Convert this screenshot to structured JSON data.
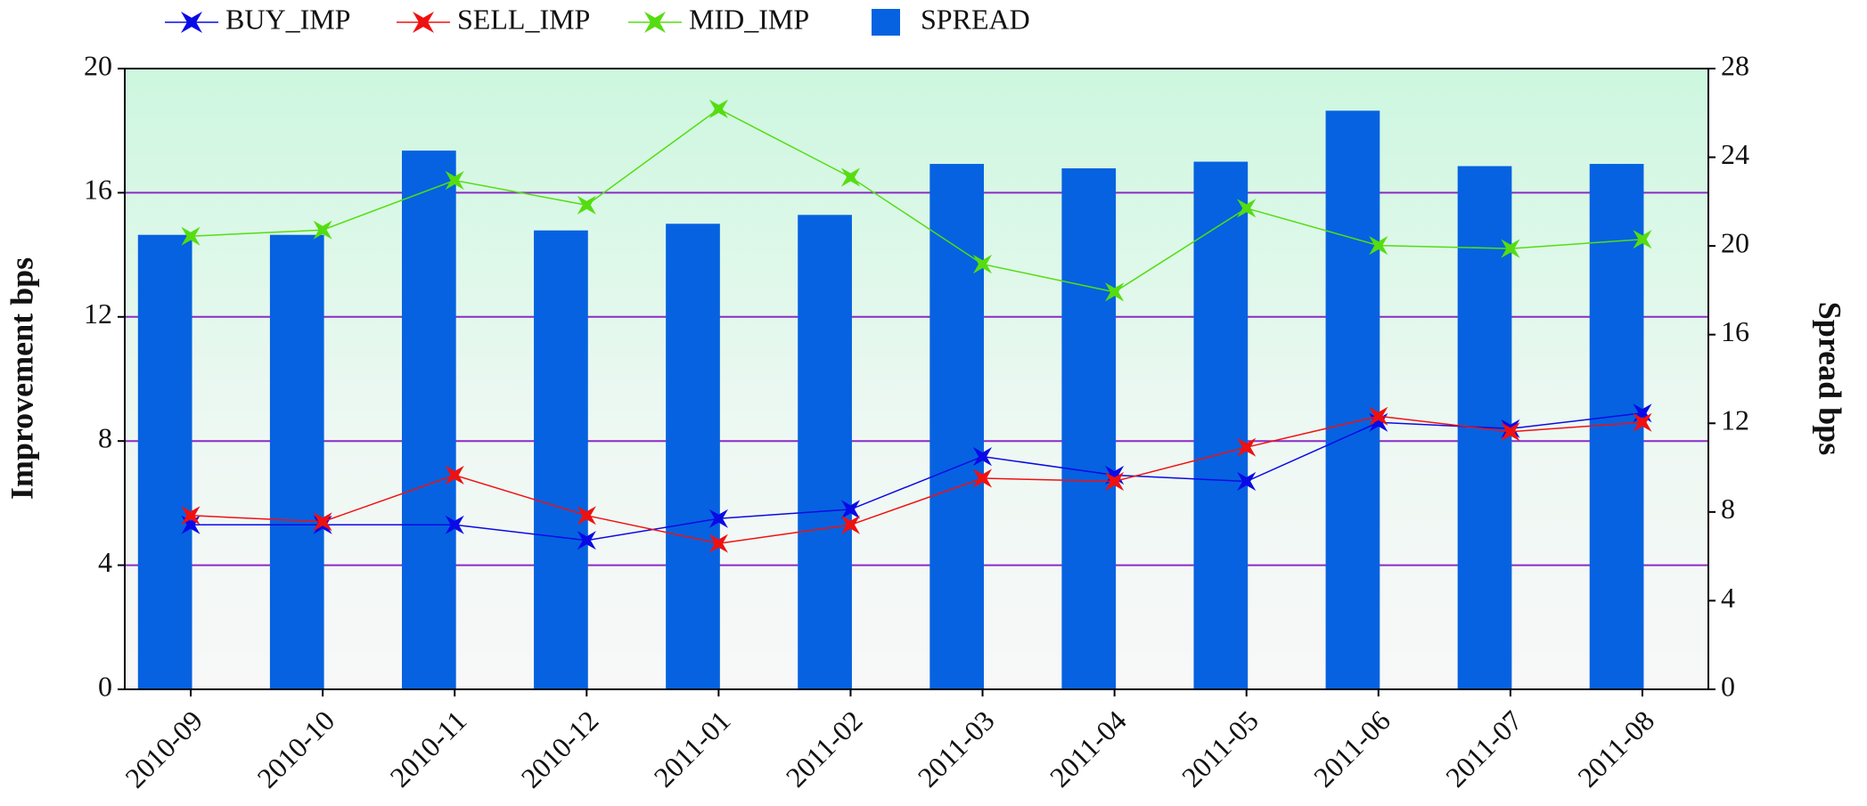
{
  "chart_data": {
    "type": "bar",
    "categories": [
      "2010-09",
      "2010-10",
      "2010-11",
      "2010-12",
      "2011-01",
      "2011-02",
      "2011-03",
      "2011-04",
      "2011-05",
      "2011-06",
      "2011-07",
      "2011-08"
    ],
    "series": [
      {
        "name": "BUY_IMP",
        "type": "line",
        "color": "#0a0ae6",
        "values": [
          5.3,
          5.3,
          5.3,
          4.8,
          5.5,
          5.8,
          7.5,
          6.9,
          6.7,
          8.6,
          8.4,
          8.9
        ]
      },
      {
        "name": "SELL_IMP",
        "type": "line",
        "color": "#f01010",
        "values": [
          5.6,
          5.4,
          6.9,
          5.6,
          4.7,
          5.3,
          6.8,
          6.7,
          7.8,
          8.8,
          8.3,
          8.6
        ]
      },
      {
        "name": "MID_IMP",
        "type": "line",
        "color": "#55dd11",
        "values": [
          14.6,
          14.8,
          16.4,
          15.6,
          18.7,
          16.5,
          13.7,
          12.8,
          15.5,
          14.3,
          14.2,
          14.5
        ]
      },
      {
        "name": "SPREAD",
        "type": "bar",
        "axis": "y2",
        "color": "#0662e0",
        "values": [
          20.5,
          20.5,
          24.3,
          20.7,
          21.0,
          21.4,
          23.7,
          23.5,
          23.8,
          26.1,
          23.6,
          23.7
        ]
      }
    ],
    "y_label": "Improvement bps",
    "y2_label": "Spread bps",
    "ylim": [
      0,
      20
    ],
    "yticks": [
      0,
      4,
      8,
      12,
      16,
      20
    ],
    "y2lim": [
      0,
      28
    ],
    "y2ticks": [
      0,
      4,
      8,
      12,
      16,
      20,
      24,
      28
    ],
    "grid": true,
    "legend": "top"
  }
}
